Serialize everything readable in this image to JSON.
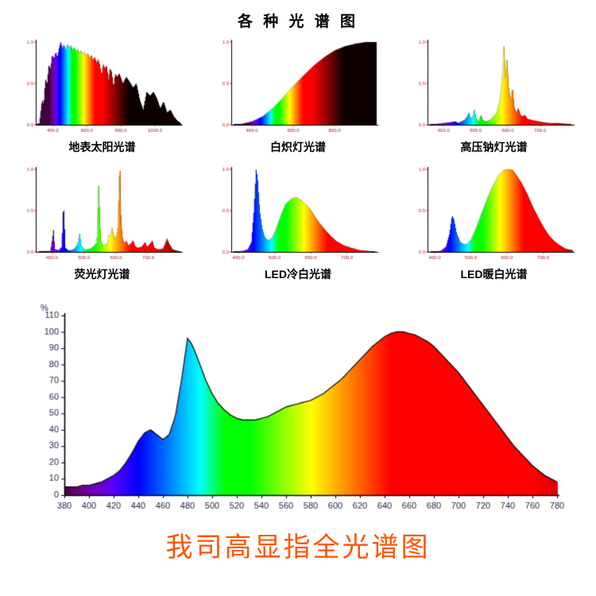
{
  "page": {
    "title": "各 种 光 谱 图"
  },
  "small_axis": {
    "yticks": [
      "1.0",
      "0.5",
      "0.0"
    ]
  },
  "chart_data": [
    {
      "id": "solar",
      "type": "area",
      "title": "地表太阳光谱",
      "x_range": [
        300,
        1150
      ],
      "y_max": 1,
      "fade_start": 690,
      "xticks": [
        400,
        600,
        800,
        1000
      ],
      "points": [
        [
          300,
          0
        ],
        [
          320,
          0.02
        ],
        [
          335,
          0.3
        ],
        [
          345,
          0.25
        ],
        [
          355,
          0.55
        ],
        [
          365,
          0.5
        ],
        [
          375,
          0.72
        ],
        [
          385,
          0.68
        ],
        [
          395,
          0.85
        ],
        [
          405,
          0.8
        ],
        [
          415,
          0.88
        ],
        [
          425,
          0.82
        ],
        [
          435,
          0.92
        ],
        [
          445,
          1.0
        ],
        [
          455,
          0.93
        ],
        [
          465,
          0.97
        ],
        [
          475,
          0.9
        ],
        [
          485,
          0.98
        ],
        [
          495,
          0.93
        ],
        [
          505,
          0.96
        ],
        [
          515,
          0.9
        ],
        [
          525,
          0.94
        ],
        [
          535,
          0.88
        ],
        [
          545,
          0.92
        ],
        [
          555,
          0.87
        ],
        [
          565,
          0.9
        ],
        [
          575,
          0.85
        ],
        [
          585,
          0.88
        ],
        [
          595,
          0.83
        ],
        [
          605,
          0.87
        ],
        [
          615,
          0.8
        ],
        [
          625,
          0.85
        ],
        [
          635,
          0.78
        ],
        [
          645,
          0.82
        ],
        [
          655,
          0.75
        ],
        [
          665,
          0.79
        ],
        [
          675,
          0.72
        ],
        [
          685,
          0.6
        ],
        [
          695,
          0.74
        ],
        [
          705,
          0.68
        ],
        [
          715,
          0.72
        ],
        [
          725,
          0.55
        ],
        [
          735,
          0.68
        ],
        [
          745,
          0.64
        ],
        [
          755,
          0.45
        ],
        [
          765,
          0.62
        ],
        [
          775,
          0.58
        ],
        [
          790,
          0.62
        ],
        [
          810,
          0.5
        ],
        [
          830,
          0.58
        ],
        [
          850,
          0.52
        ],
        [
          870,
          0.45
        ],
        [
          890,
          0.5
        ],
        [
          910,
          0.3
        ],
        [
          930,
          0.18
        ],
        [
          950,
          0.4
        ],
        [
          970,
          0.35
        ],
        [
          990,
          0.4
        ],
        [
          1010,
          0.32
        ],
        [
          1030,
          0.2
        ],
        [
          1050,
          0.28
        ],
        [
          1070,
          0.15
        ],
        [
          1090,
          0.18
        ],
        [
          1110,
          0.1
        ],
        [
          1130,
          0.05
        ],
        [
          1150,
          0.02
        ]
      ]
    },
    {
      "id": "incandescent",
      "type": "area",
      "title": "白炽灯光谱",
      "x_range": [
        300,
        1000
      ],
      "y_max": 1,
      "fade_start": 690,
      "xticks": [
        400,
        600,
        800
      ],
      "points": [
        [
          300,
          0
        ],
        [
          350,
          0.01
        ],
        [
          400,
          0.04
        ],
        [
          450,
          0.1
        ],
        [
          500,
          0.2
        ],
        [
          550,
          0.33
        ],
        [
          600,
          0.47
        ],
        [
          650,
          0.6
        ],
        [
          700,
          0.72
        ],
        [
          750,
          0.82
        ],
        [
          800,
          0.9
        ],
        [
          850,
          0.95
        ],
        [
          900,
          0.98
        ],
        [
          950,
          1.0
        ],
        [
          1000,
          1.0
        ]
      ]
    },
    {
      "id": "sodium",
      "type": "area",
      "title": "高压钠灯光谱",
      "x_range": [
        350,
        800
      ],
      "y_max": 1,
      "fade_start": 720,
      "xticks": [
        400,
        500,
        600,
        700
      ],
      "points": [
        [
          350,
          0
        ],
        [
          380,
          0.01
        ],
        [
          400,
          0.02
        ],
        [
          420,
          0.03
        ],
        [
          435,
          0.04
        ],
        [
          445,
          0.02
        ],
        [
          455,
          0.04
        ],
        [
          465,
          0.06
        ],
        [
          472,
          0.1
        ],
        [
          478,
          0.15
        ],
        [
          484,
          0.08
        ],
        [
          490,
          0.1
        ],
        [
          495,
          0.2
        ],
        [
          500,
          0.08
        ],
        [
          508,
          0.04
        ],
        [
          515,
          0.12
        ],
        [
          522,
          0.05
        ],
        [
          532,
          0.04
        ],
        [
          545,
          0.06
        ],
        [
          555,
          0.1
        ],
        [
          565,
          0.15
        ],
        [
          575,
          0.3
        ],
        [
          583,
          0.6
        ],
        [
          588,
          1.0
        ],
        [
          592,
          0.55
        ],
        [
          597,
          0.8
        ],
        [
          602,
          0.45
        ],
        [
          608,
          0.3
        ],
        [
          614,
          0.45
        ],
        [
          619,
          0.22
        ],
        [
          625,
          0.15
        ],
        [
          632,
          0.2
        ],
        [
          638,
          0.12
        ],
        [
          645,
          0.1
        ],
        [
          652,
          0.12
        ],
        [
          660,
          0.07
        ],
        [
          670,
          0.06
        ],
        [
          682,
          0.05
        ],
        [
          695,
          0.04
        ],
        [
          710,
          0.03
        ],
        [
          730,
          0.02
        ],
        [
          755,
          0.02
        ],
        [
          780,
          0.01
        ],
        [
          800,
          0
        ]
      ]
    },
    {
      "id": "fluorescent",
      "type": "area",
      "title": "荧光灯光谱",
      "x_range": [
        350,
        800
      ],
      "y_max": 1,
      "fade_start": 720,
      "xticks": [
        400,
        500,
        600,
        700
      ],
      "points": [
        [
          350,
          0
        ],
        [
          395,
          0.01
        ],
        [
          402,
          0.2
        ],
        [
          405,
          0.28
        ],
        [
          408,
          0.03
        ],
        [
          420,
          0.02
        ],
        [
          430,
          0.06
        ],
        [
          434,
          0.48
        ],
        [
          437,
          0.5
        ],
        [
          441,
          0.05
        ],
        [
          450,
          0.02
        ],
        [
          460,
          0.02
        ],
        [
          470,
          0.04
        ],
        [
          480,
          0.1
        ],
        [
          486,
          0.22
        ],
        [
          491,
          0.08
        ],
        [
          500,
          0.03
        ],
        [
          510,
          0.03
        ],
        [
          520,
          0.04
        ],
        [
          530,
          0.07
        ],
        [
          540,
          0.12
        ],
        [
          544,
          0.7
        ],
        [
          546,
          0.85
        ],
        [
          549,
          0.35
        ],
        [
          553,
          0.12
        ],
        [
          560,
          0.07
        ],
        [
          567,
          0.1
        ],
        [
          572,
          0.08
        ],
        [
          578,
          0.22
        ],
        [
          582,
          0.18
        ],
        [
          587,
          0.3
        ],
        [
          592,
          0.2
        ],
        [
          598,
          0.15
        ],
        [
          605,
          0.3
        ],
        [
          609,
          0.9
        ],
        [
          612,
          1.0
        ],
        [
          615,
          0.35
        ],
        [
          620,
          0.15
        ],
        [
          626,
          0.1
        ],
        [
          631,
          0.14
        ],
        [
          637,
          0.08
        ],
        [
          645,
          0.1
        ],
        [
          652,
          0.14
        ],
        [
          658,
          0.07
        ],
        [
          665,
          0.05
        ],
        [
          678,
          0.06
        ],
        [
          690,
          0.12
        ],
        [
          695,
          0.06
        ],
        [
          705,
          0.1
        ],
        [
          712,
          0.14
        ],
        [
          718,
          0.05
        ],
        [
          730,
          0.03
        ],
        [
          745,
          0.04
        ],
        [
          758,
          0.16
        ],
        [
          764,
          0.1
        ],
        [
          775,
          0.03
        ],
        [
          800,
          0
        ]
      ]
    },
    {
      "id": "led_cool_white",
      "type": "area",
      "title": "LED冷白光谱",
      "x_range": [
        380,
        780
      ],
      "y_max": 1,
      "fade_start": 740,
      "xticks": [
        400,
        500,
        600,
        700
      ],
      "points": [
        [
          380,
          0
        ],
        [
          410,
          0.01
        ],
        [
          425,
          0.03
        ],
        [
          435,
          0.12
        ],
        [
          442,
          0.5
        ],
        [
          448,
          1.0
        ],
        [
          452,
          0.9
        ],
        [
          458,
          0.5
        ],
        [
          465,
          0.28
        ],
        [
          472,
          0.18
        ],
        [
          480,
          0.14
        ],
        [
          490,
          0.16
        ],
        [
          500,
          0.24
        ],
        [
          510,
          0.36
        ],
        [
          520,
          0.48
        ],
        [
          530,
          0.58
        ],
        [
          545,
          0.64
        ],
        [
          555,
          0.66
        ],
        [
          565,
          0.65
        ],
        [
          575,
          0.62
        ],
        [
          585,
          0.58
        ],
        [
          595,
          0.53
        ],
        [
          605,
          0.47
        ],
        [
          615,
          0.4
        ],
        [
          625,
          0.34
        ],
        [
          640,
          0.26
        ],
        [
          655,
          0.19
        ],
        [
          670,
          0.13
        ],
        [
          690,
          0.08
        ],
        [
          710,
          0.05
        ],
        [
          735,
          0.02
        ],
        [
          760,
          0.01
        ],
        [
          780,
          0
        ]
      ]
    },
    {
      "id": "led_warm_white",
      "type": "area",
      "title": "LED暖白光谱",
      "x_range": [
        380,
        780
      ],
      "y_max": 1,
      "fade_start": 740,
      "xticks": [
        400,
        500,
        600,
        700
      ],
      "points": [
        [
          380,
          0
        ],
        [
          415,
          0.01
        ],
        [
          430,
          0.06
        ],
        [
          440,
          0.22
        ],
        [
          447,
          0.44
        ],
        [
          452,
          0.4
        ],
        [
          460,
          0.22
        ],
        [
          470,
          0.12
        ],
        [
          480,
          0.09
        ],
        [
          490,
          0.1
        ],
        [
          500,
          0.15
        ],
        [
          515,
          0.3
        ],
        [
          530,
          0.48
        ],
        [
          545,
          0.65
        ],
        [
          560,
          0.8
        ],
        [
          575,
          0.92
        ],
        [
          590,
          0.99
        ],
        [
          605,
          1.0
        ],
        [
          615,
          0.99
        ],
        [
          625,
          0.93
        ],
        [
          640,
          0.83
        ],
        [
          655,
          0.7
        ],
        [
          670,
          0.55
        ],
        [
          685,
          0.42
        ],
        [
          700,
          0.3
        ],
        [
          715,
          0.2
        ],
        [
          730,
          0.13
        ],
        [
          745,
          0.08
        ],
        [
          760,
          0.04
        ],
        [
          780,
          0.02
        ]
      ]
    },
    {
      "id": "full_spectrum_high_cri",
      "type": "area",
      "title": "我司高显指全光谱图",
      "ylabel": "%",
      "x_range": [
        380,
        780
      ],
      "y_max": 110,
      "fade_start": 760,
      "xticks": [
        380,
        400,
        420,
        440,
        460,
        480,
        500,
        520,
        540,
        560,
        580,
        600,
        620,
        640,
        660,
        680,
        700,
        720,
        740,
        760,
        780
      ],
      "yticks": [
        0,
        10,
        20,
        30,
        40,
        50,
        60,
        70,
        80,
        90,
        100,
        110
      ],
      "points": [
        [
          380,
          5
        ],
        [
          385,
          5
        ],
        [
          390,
          5
        ],
        [
          395,
          6
        ],
        [
          400,
          6
        ],
        [
          405,
          7
        ],
        [
          410,
          8
        ],
        [
          415,
          10
        ],
        [
          420,
          12
        ],
        [
          425,
          15
        ],
        [
          430,
          20
        ],
        [
          435,
          26
        ],
        [
          440,
          33
        ],
        [
          445,
          38
        ],
        [
          450,
          40
        ],
        [
          455,
          37
        ],
        [
          460,
          34
        ],
        [
          465,
          37
        ],
        [
          470,
          48
        ],
        [
          475,
          70
        ],
        [
          480,
          96
        ],
        [
          483,
          93
        ],
        [
          486,
          88
        ],
        [
          490,
          80
        ],
        [
          495,
          70
        ],
        [
          500,
          62
        ],
        [
          505,
          56
        ],
        [
          510,
          52
        ],
        [
          515,
          49
        ],
        [
          520,
          47
        ],
        [
          525,
          46
        ],
        [
          530,
          46
        ],
        [
          535,
          46
        ],
        [
          540,
          47
        ],
        [
          545,
          48
        ],
        [
          550,
          50
        ],
        [
          555,
          52
        ],
        [
          560,
          54
        ],
        [
          565,
          55
        ],
        [
          570,
          56
        ],
        [
          575,
          57
        ],
        [
          580,
          58
        ],
        [
          585,
          60
        ],
        [
          590,
          62
        ],
        [
          595,
          65
        ],
        [
          600,
          68
        ],
        [
          605,
          71
        ],
        [
          610,
          75
        ],
        [
          615,
          79
        ],
        [
          620,
          83
        ],
        [
          625,
          87
        ],
        [
          630,
          91
        ],
        [
          635,
          94
        ],
        [
          640,
          97
        ],
        [
          645,
          99
        ],
        [
          650,
          100
        ],
        [
          655,
          100
        ],
        [
          660,
          99
        ],
        [
          665,
          98
        ],
        [
          670,
          96
        ],
        [
          675,
          94
        ],
        [
          680,
          91
        ],
        [
          685,
          87
        ],
        [
          690,
          83
        ],
        [
          695,
          79
        ],
        [
          700,
          75
        ],
        [
          705,
          70
        ],
        [
          710,
          65
        ],
        [
          715,
          60
        ],
        [
          720,
          55
        ],
        [
          725,
          50
        ],
        [
          730,
          45
        ],
        [
          735,
          40
        ],
        [
          740,
          35
        ],
        [
          745,
          30
        ],
        [
          750,
          26
        ],
        [
          755,
          22
        ],
        [
          760,
          18
        ],
        [
          765,
          15
        ],
        [
          770,
          12
        ],
        [
          775,
          10
        ],
        [
          780,
          8
        ]
      ]
    }
  ]
}
